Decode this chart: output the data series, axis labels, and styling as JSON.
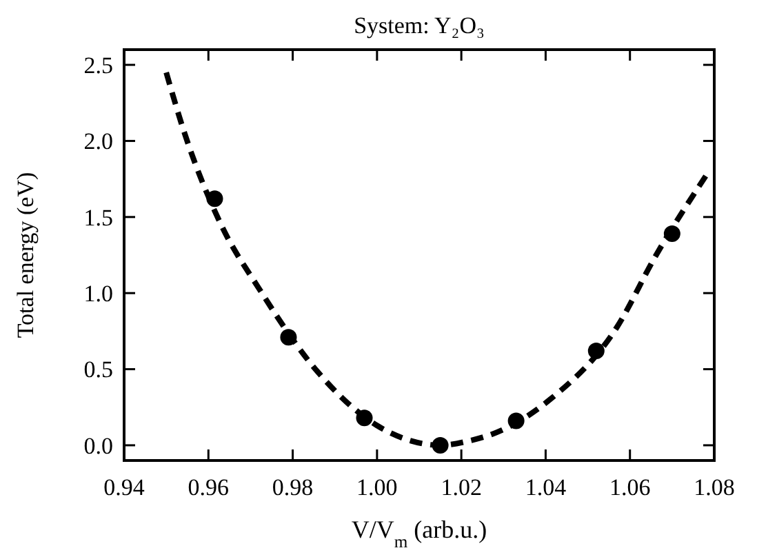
{
  "chart_data": {
    "type": "scatter",
    "title": "System: Y₂O₃",
    "xlabel": "V/V$_{m}$ (arb.u.)",
    "ylabel": "Total energy (eV)",
    "xlim": [
      0.94,
      1.08
    ],
    "ylim": [
      -0.1,
      2.6
    ],
    "xticks": [
      {
        "value": 0.94,
        "label": "0.94"
      },
      {
        "value": 0.96,
        "label": "0.96"
      },
      {
        "value": 0.98,
        "label": "0.98"
      },
      {
        "value": 1.0,
        "label": "1.00"
      },
      {
        "value": 1.02,
        "label": "1.02"
      },
      {
        "value": 1.04,
        "label": "1.04"
      },
      {
        "value": 1.06,
        "label": "1.06"
      },
      {
        "value": 1.08,
        "label": "1.08"
      }
    ],
    "yticks": [
      {
        "value": 0,
        "label": "0.0"
      },
      {
        "value": 0.5,
        "label": "0.5"
      },
      {
        "value": 1.0,
        "label": "1.0"
      },
      {
        "value": 1.5,
        "label": "1.5"
      },
      {
        "value": 2.0,
        "label": "2.0"
      },
      {
        "value": 2.5,
        "label": "2.5"
      }
    ],
    "grid": false,
    "series": [
      {
        "type": "line",
        "color": "#000000",
        "line_style": "dashed",
        "marker": "none",
        "x": [
          0.95,
          0.954,
          0.963,
          0.972,
          0.986,
          1.0,
          1.008,
          1.015,
          1.022,
          1.027,
          1.041,
          1.057,
          1.066,
          1.078
        ],
        "values": [
          2.45,
          2.08,
          1.45,
          1.03,
          0.48,
          0.13,
          0.03,
          0.0,
          0.03,
          0.07,
          0.3,
          0.78,
          1.24,
          1.77
        ]
      },
      {
        "color": "#000000",
        "marker": "circle",
        "x": [
          0.9615,
          0.979,
          0.997,
          1.015,
          1.033,
          1.052,
          1.07
        ],
        "values": [
          1.62,
          0.71,
          0.18,
          0.0,
          0.16,
          0.62,
          1.39
        ]
      }
    ]
  }
}
